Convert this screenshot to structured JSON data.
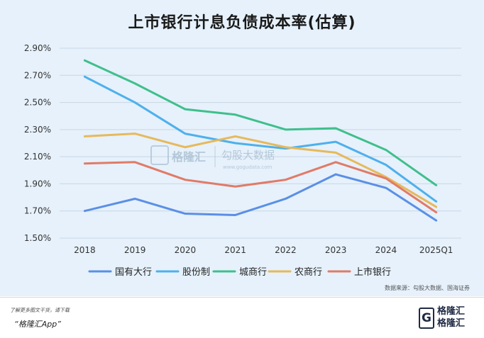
{
  "chart_data": {
    "type": "line",
    "title": "上市银行计息负债成本率(估算)",
    "categories": [
      "2018",
      "2019",
      "2020",
      "2021",
      "2022",
      "2023",
      "2024",
      "2025Q1"
    ],
    "y_ticks": [
      "1.50%",
      "1.70%",
      "1.90%",
      "2.10%",
      "2.30%",
      "2.50%",
      "2.70%",
      "2.90%"
    ],
    "ylim": [
      1.5,
      2.9
    ],
    "grid": true,
    "legend_position": "bottom",
    "series": [
      {
        "name": "国有大行",
        "color": "#5b8fe6",
        "values": [
          1.7,
          1.79,
          1.68,
          1.67,
          1.79,
          1.97,
          1.87,
          1.63
        ]
      },
      {
        "name": "股份制",
        "color": "#4eb0ec",
        "values": [
          2.69,
          2.5,
          2.27,
          2.2,
          2.16,
          2.21,
          2.04,
          1.77
        ]
      },
      {
        "name": "城商行",
        "color": "#3fbf8c",
        "values": [
          2.81,
          2.64,
          2.45,
          2.41,
          2.3,
          2.31,
          2.15,
          1.89
        ]
      },
      {
        "name": "农商行",
        "color": "#e7b95b",
        "values": [
          2.25,
          2.27,
          2.17,
          2.25,
          2.17,
          2.13,
          1.95,
          1.73
        ]
      },
      {
        "name": "上市银行",
        "color": "#e07b67",
        "values": [
          2.05,
          2.06,
          1.93,
          1.88,
          1.93,
          2.06,
          1.94,
          1.69
        ]
      }
    ]
  },
  "source_note": "数据来源：勾股大数据、国海证券",
  "footer": {
    "more_text": "了解更多图文干货，请下载",
    "app_name": "“格隆汇App”"
  },
  "watermark": {
    "brand_name": "格隆汇",
    "data_brand": "勾股大数据",
    "data_url": "www.gogudata.com"
  },
  "brand": {
    "glyph": "G",
    "name": "格隆汇"
  }
}
